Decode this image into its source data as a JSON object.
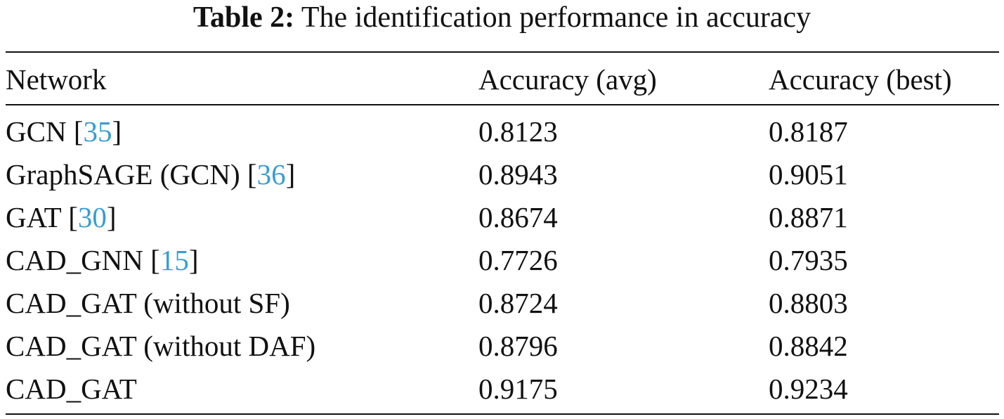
{
  "caption": {
    "label": "Table 2:",
    "text": "The identification performance in accuracy"
  },
  "header": {
    "network": "Network",
    "avg": "Accuracy (avg)",
    "best": "Accuracy (best)"
  },
  "rows": [
    {
      "name": "GCN",
      "ref": "35",
      "avg": "0.8123",
      "best": "0.8187"
    },
    {
      "name": "GraphSAGE (GCN)",
      "ref": "36",
      "avg": "0.8943",
      "best": "0.9051"
    },
    {
      "name": "GAT",
      "ref": "30",
      "avg": "0.8674",
      "best": "0.8871"
    },
    {
      "name": "CAD_GNN",
      "ref": "15",
      "avg": "0.7726",
      "best": "0.7935"
    },
    {
      "name": "CAD_GAT (without SF)",
      "ref": "",
      "avg": "0.8724",
      "best": "0.8803"
    },
    {
      "name": "CAD_GAT (without DAF)",
      "ref": "",
      "avg": "0.8796",
      "best": "0.8842"
    },
    {
      "name": "CAD_GAT",
      "ref": "",
      "avg": "0.9175",
      "best": "0.9234"
    }
  ],
  "colors": {
    "citation": "#3a9dd0",
    "text": "#111111"
  }
}
